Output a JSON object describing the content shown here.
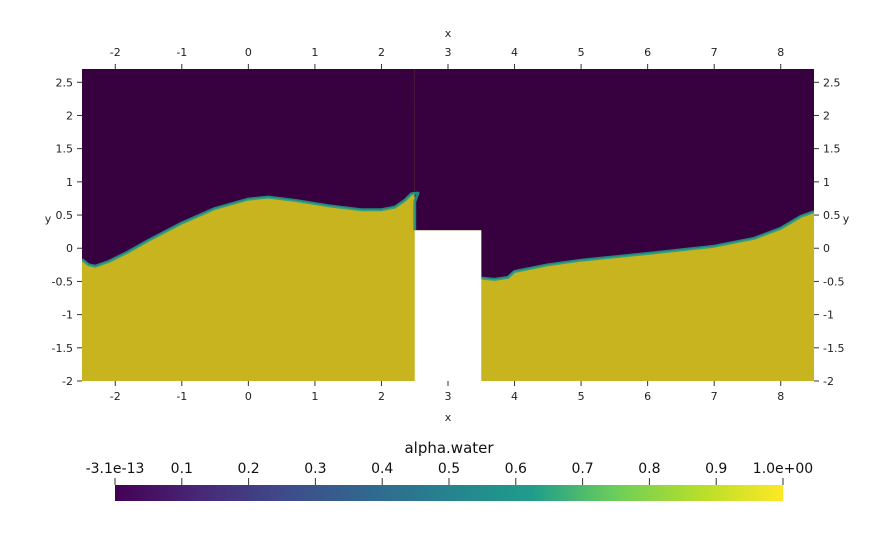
{
  "chart_data": {
    "type": "heatmap",
    "field": "alpha.water",
    "xlabel": "x",
    "ylabel": "y",
    "xlim": [
      -2.5,
      8.5
    ],
    "ylim": [
      -2,
      2.7
    ],
    "xticks": [
      "-2",
      "-1",
      "0",
      "1",
      "2",
      "3",
      "4",
      "5",
      "6",
      "7",
      "8"
    ],
    "yticks": [
      "-2",
      "-1.5",
      "-1",
      "-0.5",
      "0",
      "0.5",
      "1",
      "1.5",
      "2",
      "2.5"
    ],
    "obstacle": {
      "x": [
        2.5,
        3.5
      ],
      "y": [
        -2,
        0.27
      ]
    },
    "surface_left": [
      [
        -2.5,
        -0.17
      ],
      [
        -2.4,
        -0.25
      ],
      [
        -2.3,
        -0.27
      ],
      [
        -2.1,
        -0.2
      ],
      [
        -1.8,
        -0.05
      ],
      [
        -1.5,
        0.12
      ],
      [
        -1.0,
        0.38
      ],
      [
        -0.5,
        0.6
      ],
      [
        0.0,
        0.74
      ],
      [
        0.3,
        0.77
      ],
      [
        0.7,
        0.72
      ],
      [
        1.2,
        0.64
      ],
      [
        1.7,
        0.58
      ],
      [
        2.0,
        0.58
      ],
      [
        2.2,
        0.62
      ],
      [
        2.35,
        0.72
      ],
      [
        2.45,
        0.82
      ],
      [
        2.55,
        0.83
      ],
      [
        2.5,
        0.7
      ],
      [
        2.5,
        0.27
      ]
    ],
    "surface_right": [
      [
        3.5,
        -0.45
      ],
      [
        3.7,
        -0.47
      ],
      [
        3.9,
        -0.44
      ],
      [
        4.0,
        -0.35
      ],
      [
        4.5,
        -0.25
      ],
      [
        5.0,
        -0.18
      ],
      [
        6.0,
        -0.08
      ],
      [
        7.0,
        0.03
      ],
      [
        7.6,
        0.15
      ],
      [
        8.0,
        0.3
      ],
      [
        8.3,
        0.48
      ],
      [
        8.5,
        0.55
      ]
    ],
    "colorbar": {
      "title": "alpha.water",
      "min": -3.1e-13,
      "max": 1.0,
      "tick_labels": [
        "-3.1e-13",
        "0.1",
        "0.2",
        "0.3",
        "0.4",
        "0.5",
        "0.6",
        "0.7",
        "0.8",
        "0.9",
        "1.0e+00"
      ],
      "stops": [
        "#440154",
        "#482777",
        "#3f4a8a",
        "#31678e",
        "#26838f",
        "#1f9d8a",
        "#6cce5a",
        "#b6de2b",
        "#fee825"
      ]
    },
    "colors": {
      "water": "#c7b41e",
      "air": "#370140",
      "obstacle": "#ffffff"
    }
  }
}
